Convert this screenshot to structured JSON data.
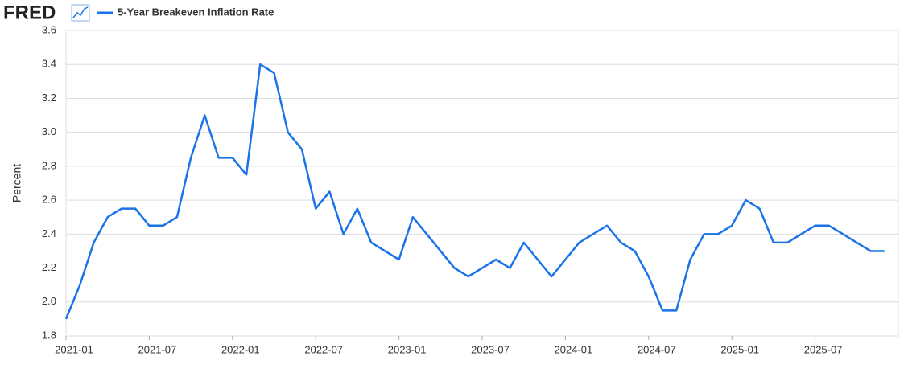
{
  "logo": "FRED",
  "chart_data": {
    "type": "line",
    "ylabel": "Percent",
    "x": [
      "2021-01",
      "2021-02",
      "2021-03",
      "2021-04",
      "2021-05",
      "2021-06",
      "2021-07",
      "2021-08",
      "2021-09",
      "2021-10",
      "2021-11",
      "2021-12",
      "2022-01",
      "2022-02",
      "2022-03",
      "2022-04",
      "2022-05",
      "2022-06",
      "2022-07",
      "2022-08",
      "2022-09",
      "2022-10",
      "2022-11",
      "2022-12",
      "2023-01",
      "2023-02",
      "2023-03",
      "2023-04",
      "2023-05",
      "2023-06",
      "2023-07",
      "2023-08",
      "2023-09",
      "2023-10",
      "2023-11",
      "2023-12",
      "2024-01",
      "2024-02",
      "2024-03",
      "2024-04",
      "2024-05",
      "2024-06",
      "2024-07",
      "2024-08",
      "2024-09",
      "2024-10",
      "2024-11",
      "2024-12",
      "2025-01",
      "2025-02",
      "2025-03",
      "2025-04",
      "2025-05",
      "2025-06",
      "2025-07",
      "2025-08",
      "2025-09",
      "2025-10",
      "2025-11",
      "2025-12"
    ],
    "series": [
      {
        "name": "5-Year Breakeven Inflation Rate",
        "color": "#1a73e8",
        "values": [
          1.9,
          2.1,
          2.35,
          2.5,
          2.55,
          2.55,
          2.45,
          2.45,
          2.5,
          2.85,
          3.1,
          2.85,
          2.85,
          2.75,
          3.4,
          3.35,
          3.0,
          2.9,
          2.55,
          2.65,
          2.4,
          2.55,
          2.35,
          2.3,
          2.25,
          2.5,
          2.4,
          2.3,
          2.2,
          2.15,
          2.2,
          2.25,
          2.2,
          2.35,
          2.25,
          2.15,
          2.25,
          2.35,
          2.4,
          2.45,
          2.35,
          2.3,
          2.15,
          1.95,
          1.95,
          2.25,
          2.4,
          2.4,
          2.45,
          2.6,
          2.55,
          2.35,
          2.35,
          2.4,
          2.45,
          2.45,
          2.4,
          2.35,
          2.3,
          2.3
        ]
      }
    ],
    "xlim": [
      "2021-01",
      "2026-01"
    ],
    "xticks": [
      "2021-01",
      "2021-07",
      "2022-01",
      "2022-07",
      "2023-01",
      "2023-07",
      "2024-01",
      "2024-07",
      "2025-01",
      "2025-07"
    ],
    "ylim": [
      1.8,
      3.6
    ],
    "yticks": [
      1.8,
      {
        "value": 2,
        "label": "2.0"
      },
      2.2,
      2.4,
      2.6,
      2.8,
      {
        "value": 3,
        "label": "3.0"
      },
      3.2,
      3.4,
      3.6
    ],
    "grid": true
  }
}
